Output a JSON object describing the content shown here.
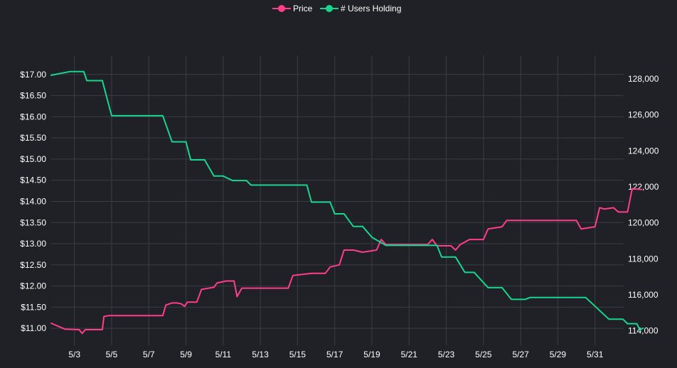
{
  "chart_data": {
    "type": "line",
    "legend": {
      "placement": "top-center"
    },
    "grid": true,
    "x_ticks": [
      "5/3",
      "5/5",
      "5/7",
      "5/9",
      "5/11",
      "5/13",
      "5/15",
      "5/17",
      "5/19",
      "5/21",
      "5/23",
      "5/25",
      "5/27",
      "5/29",
      "5/31"
    ],
    "xlim": [
      "2018-05-01T18:00",
      "2018-06-01T13:00"
    ],
    "y_left": {
      "ticks": [
        "$11.00",
        "$11.50",
        "$12.00",
        "$12.50",
        "$13.00",
        "$13.50",
        "$14.00",
        "$14.50",
        "$15.00",
        "$15.50",
        "$16.00",
        "$16.50",
        "$17.00"
      ],
      "ylim": [
        10.6,
        17.45
      ]
    },
    "y_right": {
      "ticks": [
        "114,000",
        "116,000",
        "118,000",
        "120,000",
        "122,000",
        "124,000",
        "126,000",
        "128,000"
      ],
      "ylim": [
        113.2,
        129.3
      ],
      "unit": "thousands"
    },
    "series": [
      {
        "name": "Price",
        "color": "#ff3d8b",
        "axis": "left",
        "points": [
          [
            "2018-05-01T18:00",
            11.12
          ],
          [
            "2018-05-02T12:00",
            10.98
          ],
          [
            "2018-05-03T06:00",
            10.97
          ],
          [
            "2018-05-03T10:00",
            10.88
          ],
          [
            "2018-05-03T14:00",
            10.97
          ],
          [
            "2018-05-04T12:00",
            10.97
          ],
          [
            "2018-05-04T14:00",
            11.28
          ],
          [
            "2018-05-04T20:00",
            11.3
          ],
          [
            "2018-05-07T18:00",
            11.3
          ],
          [
            "2018-05-07T22:00",
            11.55
          ],
          [
            "2018-05-08T06:00",
            11.6
          ],
          [
            "2018-05-08T12:00",
            11.6
          ],
          [
            "2018-05-08T18:00",
            11.58
          ],
          [
            "2018-05-08T22:00",
            11.52
          ],
          [
            "2018-05-09T02:00",
            11.62
          ],
          [
            "2018-05-09T14:00",
            11.62
          ],
          [
            "2018-05-09T20:00",
            11.92
          ],
          [
            "2018-05-10T12:00",
            11.97
          ],
          [
            "2018-05-10T16:00",
            12.07
          ],
          [
            "2018-05-11T04:00",
            12.12
          ],
          [
            "2018-05-11T14:00",
            12.12
          ],
          [
            "2018-05-11T18:00",
            11.75
          ],
          [
            "2018-05-12T00:00",
            11.95
          ],
          [
            "2018-05-14T12:00",
            11.95
          ],
          [
            "2018-05-14T18:00",
            12.25
          ],
          [
            "2018-05-15T18:00",
            12.3
          ],
          [
            "2018-05-16T12:00",
            12.3
          ],
          [
            "2018-05-16T18:00",
            12.45
          ],
          [
            "2018-05-17T06:00",
            12.5
          ],
          [
            "2018-05-17T12:00",
            12.85
          ],
          [
            "2018-05-18T00:00",
            12.85
          ],
          [
            "2018-05-18T12:00",
            12.8
          ],
          [
            "2018-05-19T06:00",
            12.85
          ],
          [
            "2018-05-19T12:00",
            13.1
          ],
          [
            "2018-05-19T18:00",
            12.98
          ],
          [
            "2018-05-22T00:00",
            12.98
          ],
          [
            "2018-05-22T06:00",
            13.1
          ],
          [
            "2018-05-22T12:00",
            12.95
          ],
          [
            "2018-05-23T06:00",
            12.95
          ],
          [
            "2018-05-23T12:00",
            12.85
          ],
          [
            "2018-05-23T18:00",
            12.98
          ],
          [
            "2018-05-24T06:00",
            13.1
          ],
          [
            "2018-05-25T00:00",
            13.1
          ],
          [
            "2018-05-25T06:00",
            13.35
          ],
          [
            "2018-05-26T00:00",
            13.4
          ],
          [
            "2018-05-26T06:00",
            13.55
          ],
          [
            "2018-05-30T00:00",
            13.55
          ],
          [
            "2018-05-30T06:00",
            13.35
          ],
          [
            "2018-05-31T00:00",
            13.4
          ],
          [
            "2018-05-31T06:00",
            13.85
          ],
          [
            "2018-05-31T12:00",
            13.82
          ],
          [
            "2018-06-01T00:00",
            13.85
          ],
          [
            "2018-06-01T06:00",
            13.75
          ],
          [
            "2018-06-01T18:00",
            13.75
          ],
          [
            "2018-06-02T00:00",
            14.3
          ],
          [
            "2018-06-02T12:00",
            14.28
          ]
        ]
      },
      {
        "name": "# Users Holding",
        "color": "#19d68f",
        "axis": "right",
        "points": [
          [
            "2018-05-01T18:00",
            128.2
          ],
          [
            "2018-05-02T18:00",
            128.4
          ],
          [
            "2018-05-03T12:00",
            128.4
          ],
          [
            "2018-05-03T16:00",
            127.9
          ],
          [
            "2018-05-04T12:00",
            127.9
          ],
          [
            "2018-05-05T00:00",
            125.95
          ],
          [
            "2018-05-07T18:00",
            125.95
          ],
          [
            "2018-05-08T06:00",
            124.5
          ],
          [
            "2018-05-09T00:00",
            124.5
          ],
          [
            "2018-05-09T06:00",
            123.5
          ],
          [
            "2018-05-10T00:00",
            123.5
          ],
          [
            "2018-05-10T12:00",
            122.6
          ],
          [
            "2018-05-11T00:00",
            122.6
          ],
          [
            "2018-05-11T12:00",
            122.35
          ],
          [
            "2018-05-12T06:00",
            122.35
          ],
          [
            "2018-05-12T12:00",
            122.1
          ],
          [
            "2018-05-15T12:00",
            122.1
          ],
          [
            "2018-05-15T18:00",
            121.15
          ],
          [
            "2018-05-16T18:00",
            121.15
          ],
          [
            "2018-05-17T00:00",
            120.5
          ],
          [
            "2018-05-17T12:00",
            120.5
          ],
          [
            "2018-05-18T00:00",
            119.8
          ],
          [
            "2018-05-18T12:00",
            119.8
          ],
          [
            "2018-05-19T00:00",
            119.2
          ],
          [
            "2018-05-19T18:00",
            118.75
          ],
          [
            "2018-05-22T12:00",
            118.75
          ],
          [
            "2018-05-22T18:00",
            118.1
          ],
          [
            "2018-05-23T12:00",
            118.1
          ],
          [
            "2018-05-24T00:00",
            117.25
          ],
          [
            "2018-05-24T12:00",
            117.25
          ],
          [
            "2018-05-25T06:00",
            116.4
          ],
          [
            "2018-05-26T00:00",
            116.4
          ],
          [
            "2018-05-26T12:00",
            115.75
          ],
          [
            "2018-05-27T06:00",
            115.75
          ],
          [
            "2018-05-27T12:00",
            115.85
          ],
          [
            "2018-05-30T12:00",
            115.85
          ],
          [
            "2018-05-31T18:00",
            114.65
          ],
          [
            "2018-06-01T12:00",
            114.65
          ],
          [
            "2018-06-01T18:00",
            114.4
          ],
          [
            "2018-06-02T06:00",
            114.4
          ],
          [
            "2018-06-02T10:00",
            114.05
          ],
          [
            "2018-06-02T14:00",
            114.15
          ]
        ]
      }
    ]
  }
}
